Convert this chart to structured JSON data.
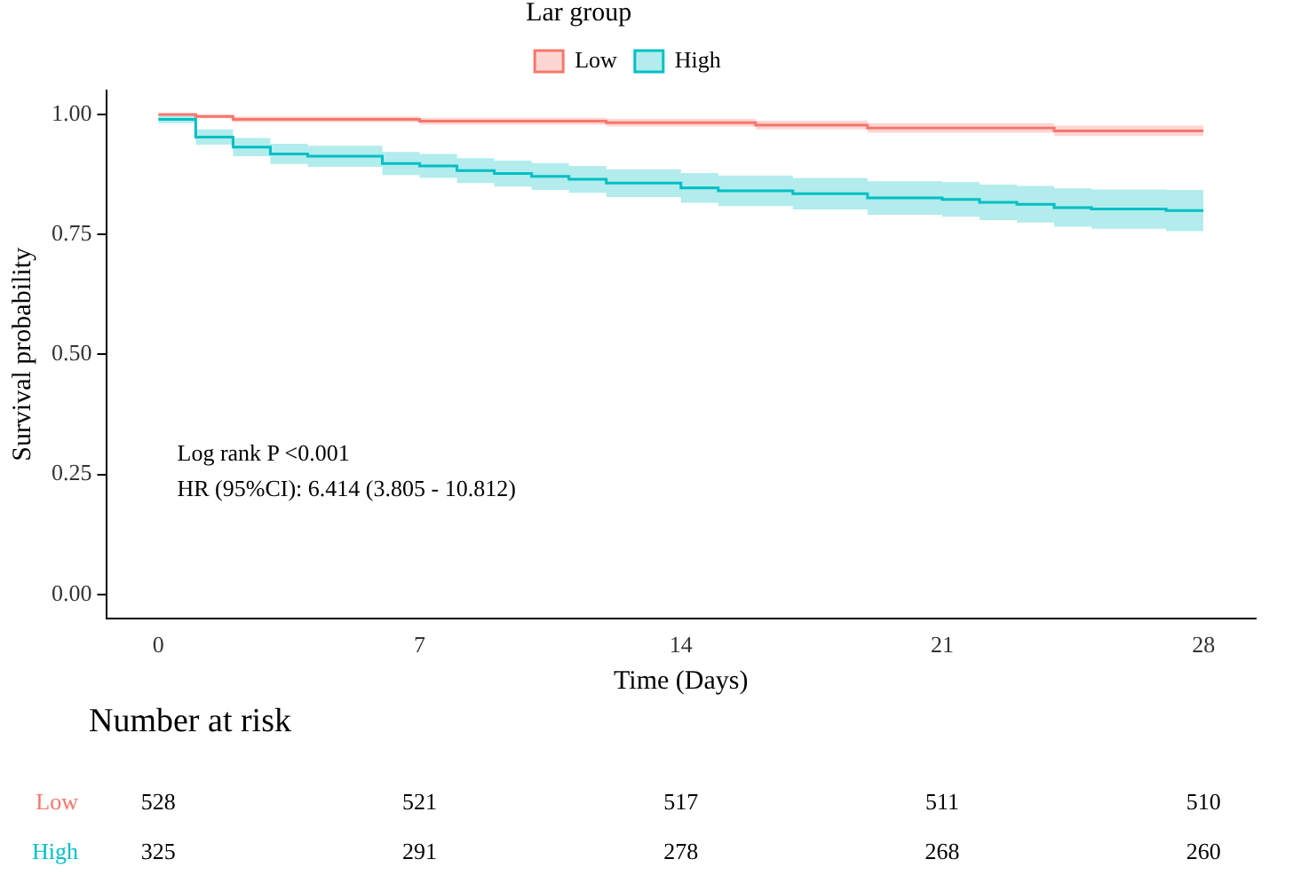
{
  "chart_data": [
    {
      "type": "step",
      "xlabel": "Time (Days)",
      "ylabel": "Survival probability",
      "legend_title": "Lar group",
      "legend": "top",
      "xlim": [
        -1.4,
        29.4
      ],
      "xticks": [
        0,
        7,
        14,
        21,
        28
      ],
      "ylim": [
        -0.05,
        1.05
      ],
      "yticks": [
        {
          "value": 0,
          "label": "0.00"
        },
        {
          "value": 0.25,
          "label": "0.25"
        },
        {
          "value": 0.5,
          "label": "0.50"
        },
        {
          "value": 0.75,
          "label": "0.75"
        },
        {
          "value": 1,
          "label": "1.00"
        }
      ],
      "grid": false,
      "annotations": [
        "Log rank P <0.001",
        "HR (95%CI): 6.414 (3.805 - 10.812)"
      ],
      "series": [
        {
          "name": "Low",
          "color": "#f8766d",
          "x": [
            0,
            1,
            2,
            7,
            12,
            16,
            19,
            24,
            28
          ],
          "values": [
            1,
            0.996,
            0.99,
            0.986,
            0.983,
            0.978,
            0.972,
            0.966,
            0.966
          ],
          "lower": [
            1,
            0.992,
            0.984,
            0.979,
            0.975,
            0.969,
            0.962,
            0.955,
            0.955
          ],
          "upper": [
            1,
            1,
            0.996,
            0.993,
            0.991,
            0.987,
            0.982,
            0.977,
            0.977
          ]
        },
        {
          "name": "High",
          "color": "#00bfc4",
          "x": [
            0,
            1,
            2,
            3,
            4,
            6,
            7,
            8,
            9,
            10,
            11,
            12,
            14,
            15,
            17,
            19,
            21,
            22,
            23,
            24,
            25,
            27,
            28
          ],
          "values": [
            0.99,
            0.953,
            0.932,
            0.918,
            0.913,
            0.898,
            0.893,
            0.883,
            0.877,
            0.871,
            0.865,
            0.857,
            0.847,
            0.841,
            0.835,
            0.826,
            0.823,
            0.817,
            0.813,
            0.806,
            0.803,
            0.8,
            0.8
          ],
          "lower": [
            0.982,
            0.937,
            0.913,
            0.897,
            0.891,
            0.874,
            0.868,
            0.857,
            0.85,
            0.843,
            0.837,
            0.828,
            0.816,
            0.809,
            0.802,
            0.791,
            0.787,
            0.78,
            0.775,
            0.766,
            0.762,
            0.757,
            0.757
          ],
          "upper": [
            0.998,
            0.969,
            0.951,
            0.939,
            0.935,
            0.922,
            0.918,
            0.909,
            0.904,
            0.899,
            0.893,
            0.886,
            0.878,
            0.873,
            0.868,
            0.861,
            0.859,
            0.854,
            0.851,
            0.846,
            0.844,
            0.843,
            0.843
          ]
        }
      ]
    },
    {
      "type": "other",
      "title": "Number at risk",
      "annotations": [
        "Low",
        "528",
        "521",
        "517",
        "511",
        "510",
        "High",
        "325",
        "291",
        "278",
        "268",
        "260"
      ]
    }
  ]
}
